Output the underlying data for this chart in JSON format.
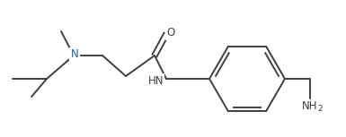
{
  "bg_color": "#ffffff",
  "line_color": "#404040",
  "label_color": "#404040",
  "N_color": "#2060a0",
  "line_width": 1.4,
  "font_size": 8.5,
  "figsize": [
    3.85,
    1.53
  ],
  "dpi": 100,
  "N_label": "N",
  "O_label": "O",
  "HN_label": "HN",
  "NH2_label": "NH",
  "NH2_sub": "2"
}
